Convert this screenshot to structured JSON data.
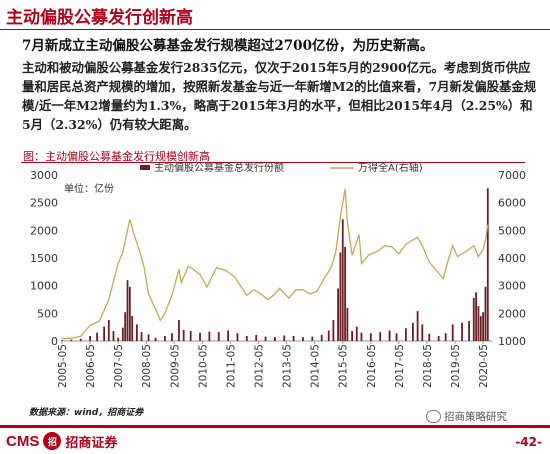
{
  "header": {
    "title": "主动偏股公募发行创新高",
    "headline": "7月新成立主动偏股公募基金发行规模超过2700亿份，为历史新高。",
    "paragraph": "主动和被动偏股公募基金发行2835亿元，仅次于2015年5月的2900亿元。考虑到货币供应量和居民总资产规模的增加，按照新发基金与近一年新增M2的比值来看，7月新发偏股基金规模/近一年M2增量约为1.3%，略高于2015年3月的水平，但相比2015年4月（2.25%）和5月（2.32%）仍有较大距离。"
  },
  "figure": {
    "caption": "图：主动偏股公募基金发行规模创新高"
  },
  "footer": {
    "source": "数据来源：wind，招商证券",
    "logo_cms": "CMS",
    "logo_seal": "招",
    "logo_name": "招商证券",
    "wechat": "招商策略研究",
    "page": "-42-"
  },
  "colors": {
    "bar": "#6b1f24",
    "line": "#c3a85c",
    "accent": "#b3001b"
  },
  "chart_data": {
    "type": "bar+line",
    "unit_label": "单位：亿份",
    "x_ticks": [
      "2005-05",
      "2006-05",
      "2007-05",
      "2008-05",
      "2009-05",
      "2010-05",
      "2011-05",
      "2012-05",
      "2013-05",
      "2014-05",
      "2015-05",
      "2016-05",
      "2017-05",
      "2018-05",
      "2019-05",
      "2020-05"
    ],
    "y_left_ticks": [
      0,
      500,
      1000,
      1500,
      2000,
      2500,
      3000
    ],
    "y_right_ticks": [
      1000,
      2000,
      3000,
      4000,
      5000,
      6000,
      7000
    ],
    "ylim_left": [
      0,
      3000
    ],
    "ylim_right": [
      1000,
      7000
    ],
    "legend_position": "top-center",
    "series": [
      {
        "name": "主动偏股公募基金总发行份额",
        "axis": "left",
        "kind": "bar",
        "points": [
          [
            "2005-05",
            15
          ],
          [
            "2005-09",
            25
          ],
          [
            "2006-01",
            40
          ],
          [
            "2006-05",
            90
          ],
          [
            "2006-08",
            150
          ],
          [
            "2006-11",
            260
          ],
          [
            "2007-01",
            380
          ],
          [
            "2007-03",
            180
          ],
          [
            "2007-05",
            60
          ],
          [
            "2007-07",
            240
          ],
          [
            "2007-08",
            520
          ],
          [
            "2007-09",
            1100
          ],
          [
            "2007-10",
            980
          ],
          [
            "2007-11",
            450
          ],
          [
            "2008-01",
            300
          ],
          [
            "2008-03",
            160
          ],
          [
            "2008-06",
            120
          ],
          [
            "2008-09",
            60
          ],
          [
            "2009-01",
            90
          ],
          [
            "2009-04",
            140
          ],
          [
            "2009-07",
            380
          ],
          [
            "2009-09",
            200
          ],
          [
            "2009-12",
            180
          ],
          [
            "2010-04",
            150
          ],
          [
            "2010-08",
            170
          ],
          [
            "2010-12",
            160
          ],
          [
            "2011-04",
            190
          ],
          [
            "2011-08",
            140
          ],
          [
            "2011-12",
            90
          ],
          [
            "2012-04",
            110
          ],
          [
            "2012-08",
            80
          ],
          [
            "2012-12",
            70
          ],
          [
            "2013-04",
            100
          ],
          [
            "2013-08",
            90
          ],
          [
            "2013-12",
            70
          ],
          [
            "2014-04",
            80
          ],
          [
            "2014-08",
            110
          ],
          [
            "2014-11",
            190
          ],
          [
            "2015-01",
            380
          ],
          [
            "2015-03",
            950
          ],
          [
            "2015-04",
            1600
          ],
          [
            "2015-05",
            2200
          ],
          [
            "2015-06",
            1700
          ],
          [
            "2015-07",
            600
          ],
          [
            "2015-09",
            180
          ],
          [
            "2015-11",
            260
          ],
          [
            "2016-01",
            150
          ],
          [
            "2016-05",
            140
          ],
          [
            "2016-09",
            160
          ],
          [
            "2017-01",
            190
          ],
          [
            "2017-04",
            140
          ],
          [
            "2017-08",
            230
          ],
          [
            "2017-11",
            330
          ],
          [
            "2018-01",
            540
          ],
          [
            "2018-03",
            300
          ],
          [
            "2018-06",
            130
          ],
          [
            "2018-10",
            90
          ],
          [
            "2019-01",
            140
          ],
          [
            "2019-04",
            300
          ],
          [
            "2019-08",
            330
          ],
          [
            "2019-11",
            360
          ],
          [
            "2020-01",
            780
          ],
          [
            "2020-02",
            880
          ],
          [
            "2020-03",
            630
          ],
          [
            "2020-04",
            450
          ],
          [
            "2020-05",
            520
          ],
          [
            "2020-06",
            980
          ],
          [
            "2020-07",
            2760
          ]
        ]
      },
      {
        "name": "万得全A(右轴)",
        "axis": "right",
        "kind": "line",
        "points": [
          [
            "2005-05",
            1080
          ],
          [
            "2005-09",
            1100
          ],
          [
            "2006-01",
            1170
          ],
          [
            "2006-05",
            1560
          ],
          [
            "2006-09",
            1720
          ],
          [
            "2007-01",
            2500
          ],
          [
            "2007-05",
            3800
          ],
          [
            "2007-07",
            4200
          ],
          [
            "2007-10",
            5400
          ],
          [
            "2007-12",
            4800
          ],
          [
            "2008-02",
            4300
          ],
          [
            "2008-04",
            3700
          ],
          [
            "2008-06",
            2700
          ],
          [
            "2008-09",
            2150
          ],
          [
            "2008-11",
            1750
          ],
          [
            "2009-01",
            2000
          ],
          [
            "2009-04",
            2650
          ],
          [
            "2009-07",
            3600
          ],
          [
            "2009-08",
            3100
          ],
          [
            "2009-11",
            3700
          ],
          [
            "2010-01",
            3600
          ],
          [
            "2010-04",
            3400
          ],
          [
            "2010-07",
            2950
          ],
          [
            "2010-11",
            3650
          ],
          [
            "2011-03",
            3550
          ],
          [
            "2011-07",
            3300
          ],
          [
            "2011-10",
            2900
          ],
          [
            "2011-12",
            2650
          ],
          [
            "2012-03",
            2850
          ],
          [
            "2012-06",
            2700
          ],
          [
            "2012-09",
            2500
          ],
          [
            "2012-12",
            2700
          ],
          [
            "2013-02",
            2900
          ],
          [
            "2013-06",
            2550
          ],
          [
            "2013-09",
            2850
          ],
          [
            "2013-12",
            2850
          ],
          [
            "2014-03",
            2700
          ],
          [
            "2014-06",
            2800
          ],
          [
            "2014-09",
            3250
          ],
          [
            "2014-12",
            3650
          ],
          [
            "2015-02",
            4200
          ],
          [
            "2015-04",
            5500
          ],
          [
            "2015-06",
            6500
          ],
          [
            "2015-07",
            5300
          ],
          [
            "2015-09",
            4100
          ],
          [
            "2015-12",
            4850
          ],
          [
            "2016-01",
            3800
          ],
          [
            "2016-04",
            4100
          ],
          [
            "2016-08",
            4250
          ],
          [
            "2016-11",
            4450
          ],
          [
            "2017-02",
            4400
          ],
          [
            "2017-05",
            4150
          ],
          [
            "2017-08",
            4500
          ],
          [
            "2017-11",
            4650
          ],
          [
            "2018-01",
            4750
          ],
          [
            "2018-03",
            4450
          ],
          [
            "2018-06",
            3850
          ],
          [
            "2018-09",
            3550
          ],
          [
            "2018-12",
            3250
          ],
          [
            "2019-02",
            3900
          ],
          [
            "2019-04",
            4450
          ],
          [
            "2019-06",
            4050
          ],
          [
            "2019-08",
            4150
          ],
          [
            "2019-10",
            4250
          ],
          [
            "2020-01",
            4450
          ],
          [
            "2020-03",
            4050
          ],
          [
            "2020-05",
            4300
          ],
          [
            "2020-06",
            4650
          ],
          [
            "2020-07",
            5200
          ]
        ]
      }
    ]
  }
}
